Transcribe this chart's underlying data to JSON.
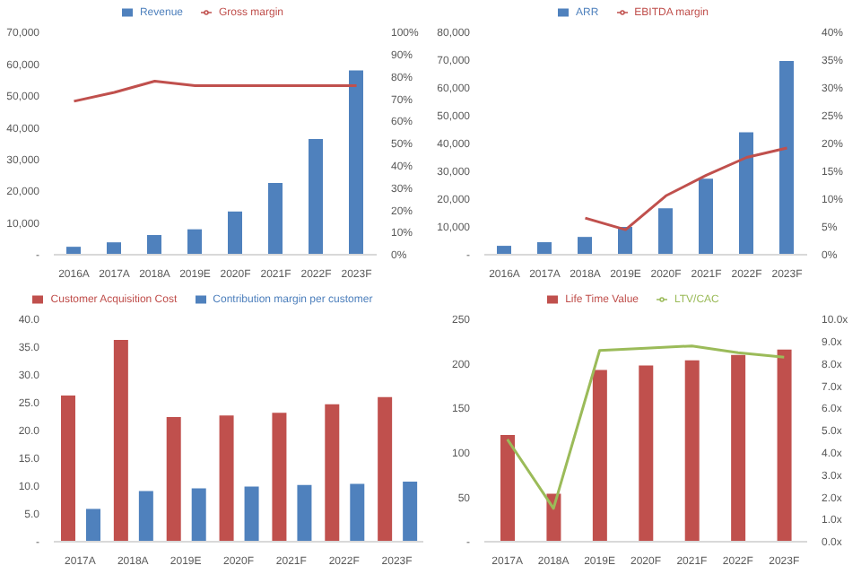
{
  "chart_data": [
    {
      "type": "bar",
      "categories": [
        "2016A",
        "2017A",
        "2018A",
        "2019E",
        "2020F",
        "2021F",
        "2022F",
        "2023F"
      ],
      "legend": "top",
      "grid": false,
      "marker": "none",
      "line_style": "solid",
      "ylim": [
        0,
        70000
      ],
      "yticks": [
        {
          "value": 0,
          "label": "-"
        },
        {
          "value": 10000,
          "label": "10,000"
        },
        {
          "value": 20000,
          "label": "20,000"
        },
        {
          "value": 30000,
          "label": "30,000"
        },
        {
          "value": 40000,
          "label": "40,000"
        },
        {
          "value": 50000,
          "label": "50,000"
        },
        {
          "value": 60000,
          "label": "60,000"
        },
        {
          "value": 70000,
          "label": "70,000"
        }
      ],
      "y2lim": [
        0,
        100
      ],
      "y2ticks": [
        {
          "value": 0,
          "label": "0%"
        },
        {
          "value": 10,
          "label": "10%"
        },
        {
          "value": 20,
          "label": "20%"
        },
        {
          "value": 30,
          "label": "30%"
        },
        {
          "value": 40,
          "label": "40%"
        },
        {
          "value": 50,
          "label": "50%"
        },
        {
          "value": 60,
          "label": "60%"
        },
        {
          "value": 70,
          "label": "70%"
        },
        {
          "value": 80,
          "label": "80%"
        },
        {
          "value": 90,
          "label": "90%"
        },
        {
          "value": 100,
          "label": "100%"
        }
      ],
      "series": [
        {
          "name": "Revenue",
          "color": "#4f81bd",
          "values": [
            2500,
            3900,
            6200,
            8000,
            13600,
            22600,
            36400,
            58000
          ]
        },
        {
          "name": "Gross margin",
          "type": "line",
          "axis": "y2",
          "color": "#c0504d",
          "values": [
            69,
            73,
            78,
            76,
            76,
            76,
            76,
            76
          ]
        }
      ]
    },
    {
      "type": "bar",
      "categories": [
        "2016A",
        "2017A",
        "2018A",
        "2019E",
        "2020F",
        "2021F",
        "2022F",
        "2023F"
      ],
      "legend": "top",
      "grid": false,
      "marker": "none",
      "line_style": "solid",
      "ylim": [
        0,
        80000
      ],
      "yticks": [
        {
          "value": 0,
          "label": "-"
        },
        {
          "value": 10000,
          "label": "10,000"
        },
        {
          "value": 20000,
          "label": "20,000"
        },
        {
          "value": 30000,
          "label": "30,000"
        },
        {
          "value": 40000,
          "label": "40,000"
        },
        {
          "value": 50000,
          "label": "50,000"
        },
        {
          "value": 60000,
          "label": "60,000"
        },
        {
          "value": 70000,
          "label": "70,000"
        },
        {
          "value": 80000,
          "label": "80,000"
        }
      ],
      "y2lim": [
        0,
        40
      ],
      "y2ticks": [
        {
          "value": 0,
          "label": "0%"
        },
        {
          "value": 5,
          "label": "5%"
        },
        {
          "value": 10,
          "label": "10%"
        },
        {
          "value": 15,
          "label": "15%"
        },
        {
          "value": 20,
          "label": "20%"
        },
        {
          "value": 25,
          "label": "25%"
        },
        {
          "value": 30,
          "label": "30%"
        },
        {
          "value": 35,
          "label": "35%"
        },
        {
          "value": 40,
          "label": "40%"
        }
      ],
      "series": [
        {
          "name": "ARR",
          "color": "#4f81bd",
          "values": [
            3200,
            4500,
            6400,
            10000,
            16700,
            27300,
            44000,
            69700
          ]
        },
        {
          "name": "EBITDA margin",
          "type": "line",
          "axis": "y2",
          "color": "#c0504d",
          "values": [
            null,
            null,
            6.6,
            4.5,
            10.6,
            14.3,
            17.5,
            19.2
          ]
        }
      ]
    },
    {
      "type": "bar",
      "categories": [
        "2017A",
        "2018A",
        "2019E",
        "2020F",
        "2021F",
        "2022F",
        "2023F"
      ],
      "legend": "top",
      "grid": false,
      "ylim": [
        0,
        40
      ],
      "yticks": [
        {
          "value": 0,
          "label": "-"
        },
        {
          "value": 5,
          "label": "5.0"
        },
        {
          "value": 10,
          "label": "10.0"
        },
        {
          "value": 15,
          "label": "15.0"
        },
        {
          "value": 20,
          "label": "20.0"
        },
        {
          "value": 25,
          "label": "25.0"
        },
        {
          "value": 30,
          "label": "30.0"
        },
        {
          "value": 35,
          "label": "35.0"
        },
        {
          "value": 40,
          "label": "40.0"
        }
      ],
      "series": [
        {
          "name": "Customer Acquisition Cost",
          "color": "#c0504d",
          "values": [
            26.3,
            36.3,
            22.4,
            22.7,
            23.2,
            24.7,
            26.0
          ]
        },
        {
          "name": "Contribution margin per customer",
          "color": "#4f81bd",
          "values": [
            5.9,
            9.1,
            9.6,
            9.9,
            10.2,
            10.4,
            10.8
          ]
        }
      ]
    },
    {
      "type": "bar",
      "categories": [
        "2017A",
        "2018A",
        "2019E",
        "2020F",
        "2021F",
        "2022F",
        "2023F"
      ],
      "legend": "top",
      "grid": false,
      "marker": "none",
      "line_style": "solid",
      "ylim": [
        0,
        250
      ],
      "yticks": [
        {
          "value": 0,
          "label": "-"
        },
        50,
        100,
        150,
        200,
        250
      ],
      "y2lim": [
        0,
        10
      ],
      "y2ticks": [
        {
          "value": 0,
          "label": "0.0x"
        },
        {
          "value": 1,
          "label": "1.0x"
        },
        {
          "value": 2,
          "label": "2.0x"
        },
        {
          "value": 3,
          "label": "3.0x"
        },
        {
          "value": 4,
          "label": "4.0x"
        },
        {
          "value": 5,
          "label": "5.0x"
        },
        {
          "value": 6,
          "label": "6.0x"
        },
        {
          "value": 7,
          "label": "7.0x"
        },
        {
          "value": 8,
          "label": "8.0x"
        },
        {
          "value": 9,
          "label": "9.0x"
        },
        {
          "value": 10,
          "label": "10.0x"
        }
      ],
      "series": [
        {
          "name": "Life Time Value",
          "color": "#c0504d",
          "values": [
            120,
            54,
            193,
            198,
            204,
            210,
            216
          ]
        },
        {
          "name": "LTV/CAC",
          "type": "line",
          "axis": "y2",
          "color": "#9bbb59",
          "values": [
            4.6,
            1.5,
            8.6,
            8.7,
            8.8,
            8.5,
            8.3
          ]
        }
      ]
    }
  ]
}
